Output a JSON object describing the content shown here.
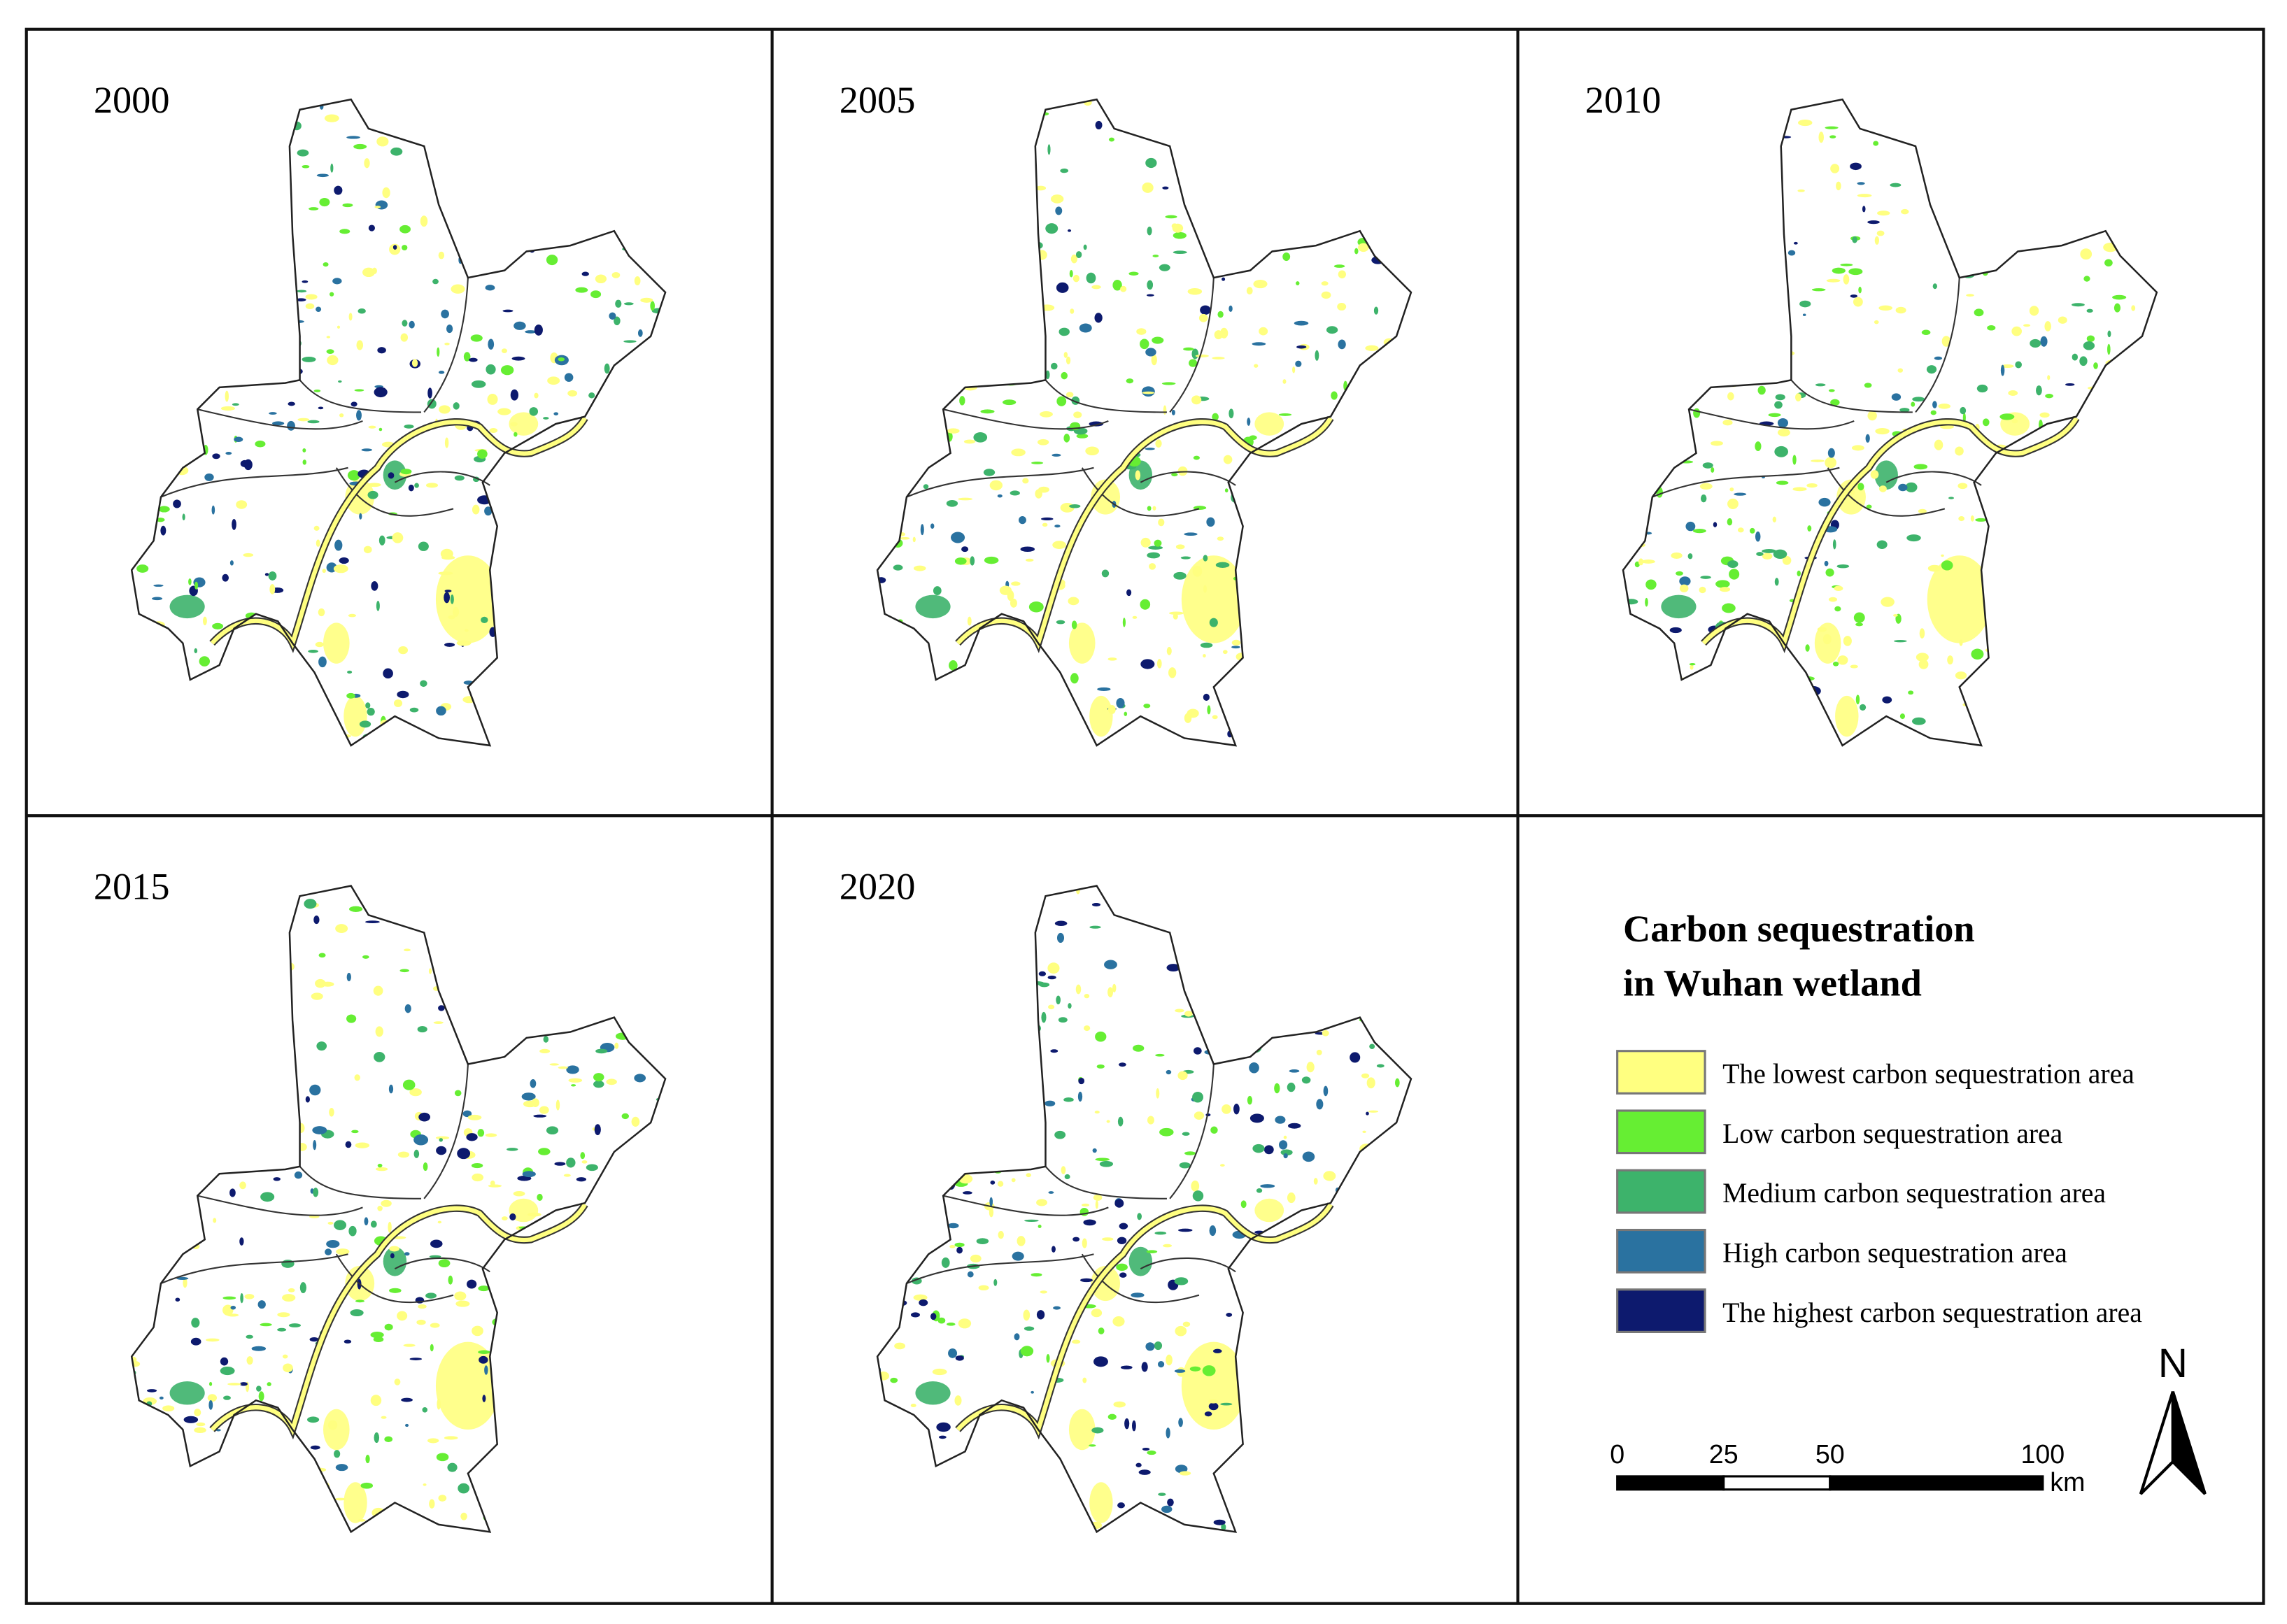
{
  "panels": [
    {
      "year": "2000"
    },
    {
      "year": "2005"
    },
    {
      "year": "2010"
    },
    {
      "year": "2015"
    },
    {
      "year": "2020"
    }
  ],
  "legend": {
    "title": [
      "Carbon sequestration",
      "in Wuhan wetland"
    ],
    "items": [
      {
        "label": "The lowest carbon sequestration area",
        "color": "#ffff80"
      },
      {
        "label": "Low carbon sequestration area",
        "color": "#66ee33"
      },
      {
        "label": "Medium carbon sequestration area",
        "color": "#3db36b"
      },
      {
        "label": "High carbon sequestration area",
        "color": "#2a72a0"
      },
      {
        "label": "The highest carbon sequestration area",
        "color": "#0d1a6e"
      }
    ]
  },
  "scale_bar": {
    "ticks": [
      0,
      25,
      50,
      100
    ],
    "unit": "km"
  },
  "north_arrow": {
    "label": "N"
  }
}
